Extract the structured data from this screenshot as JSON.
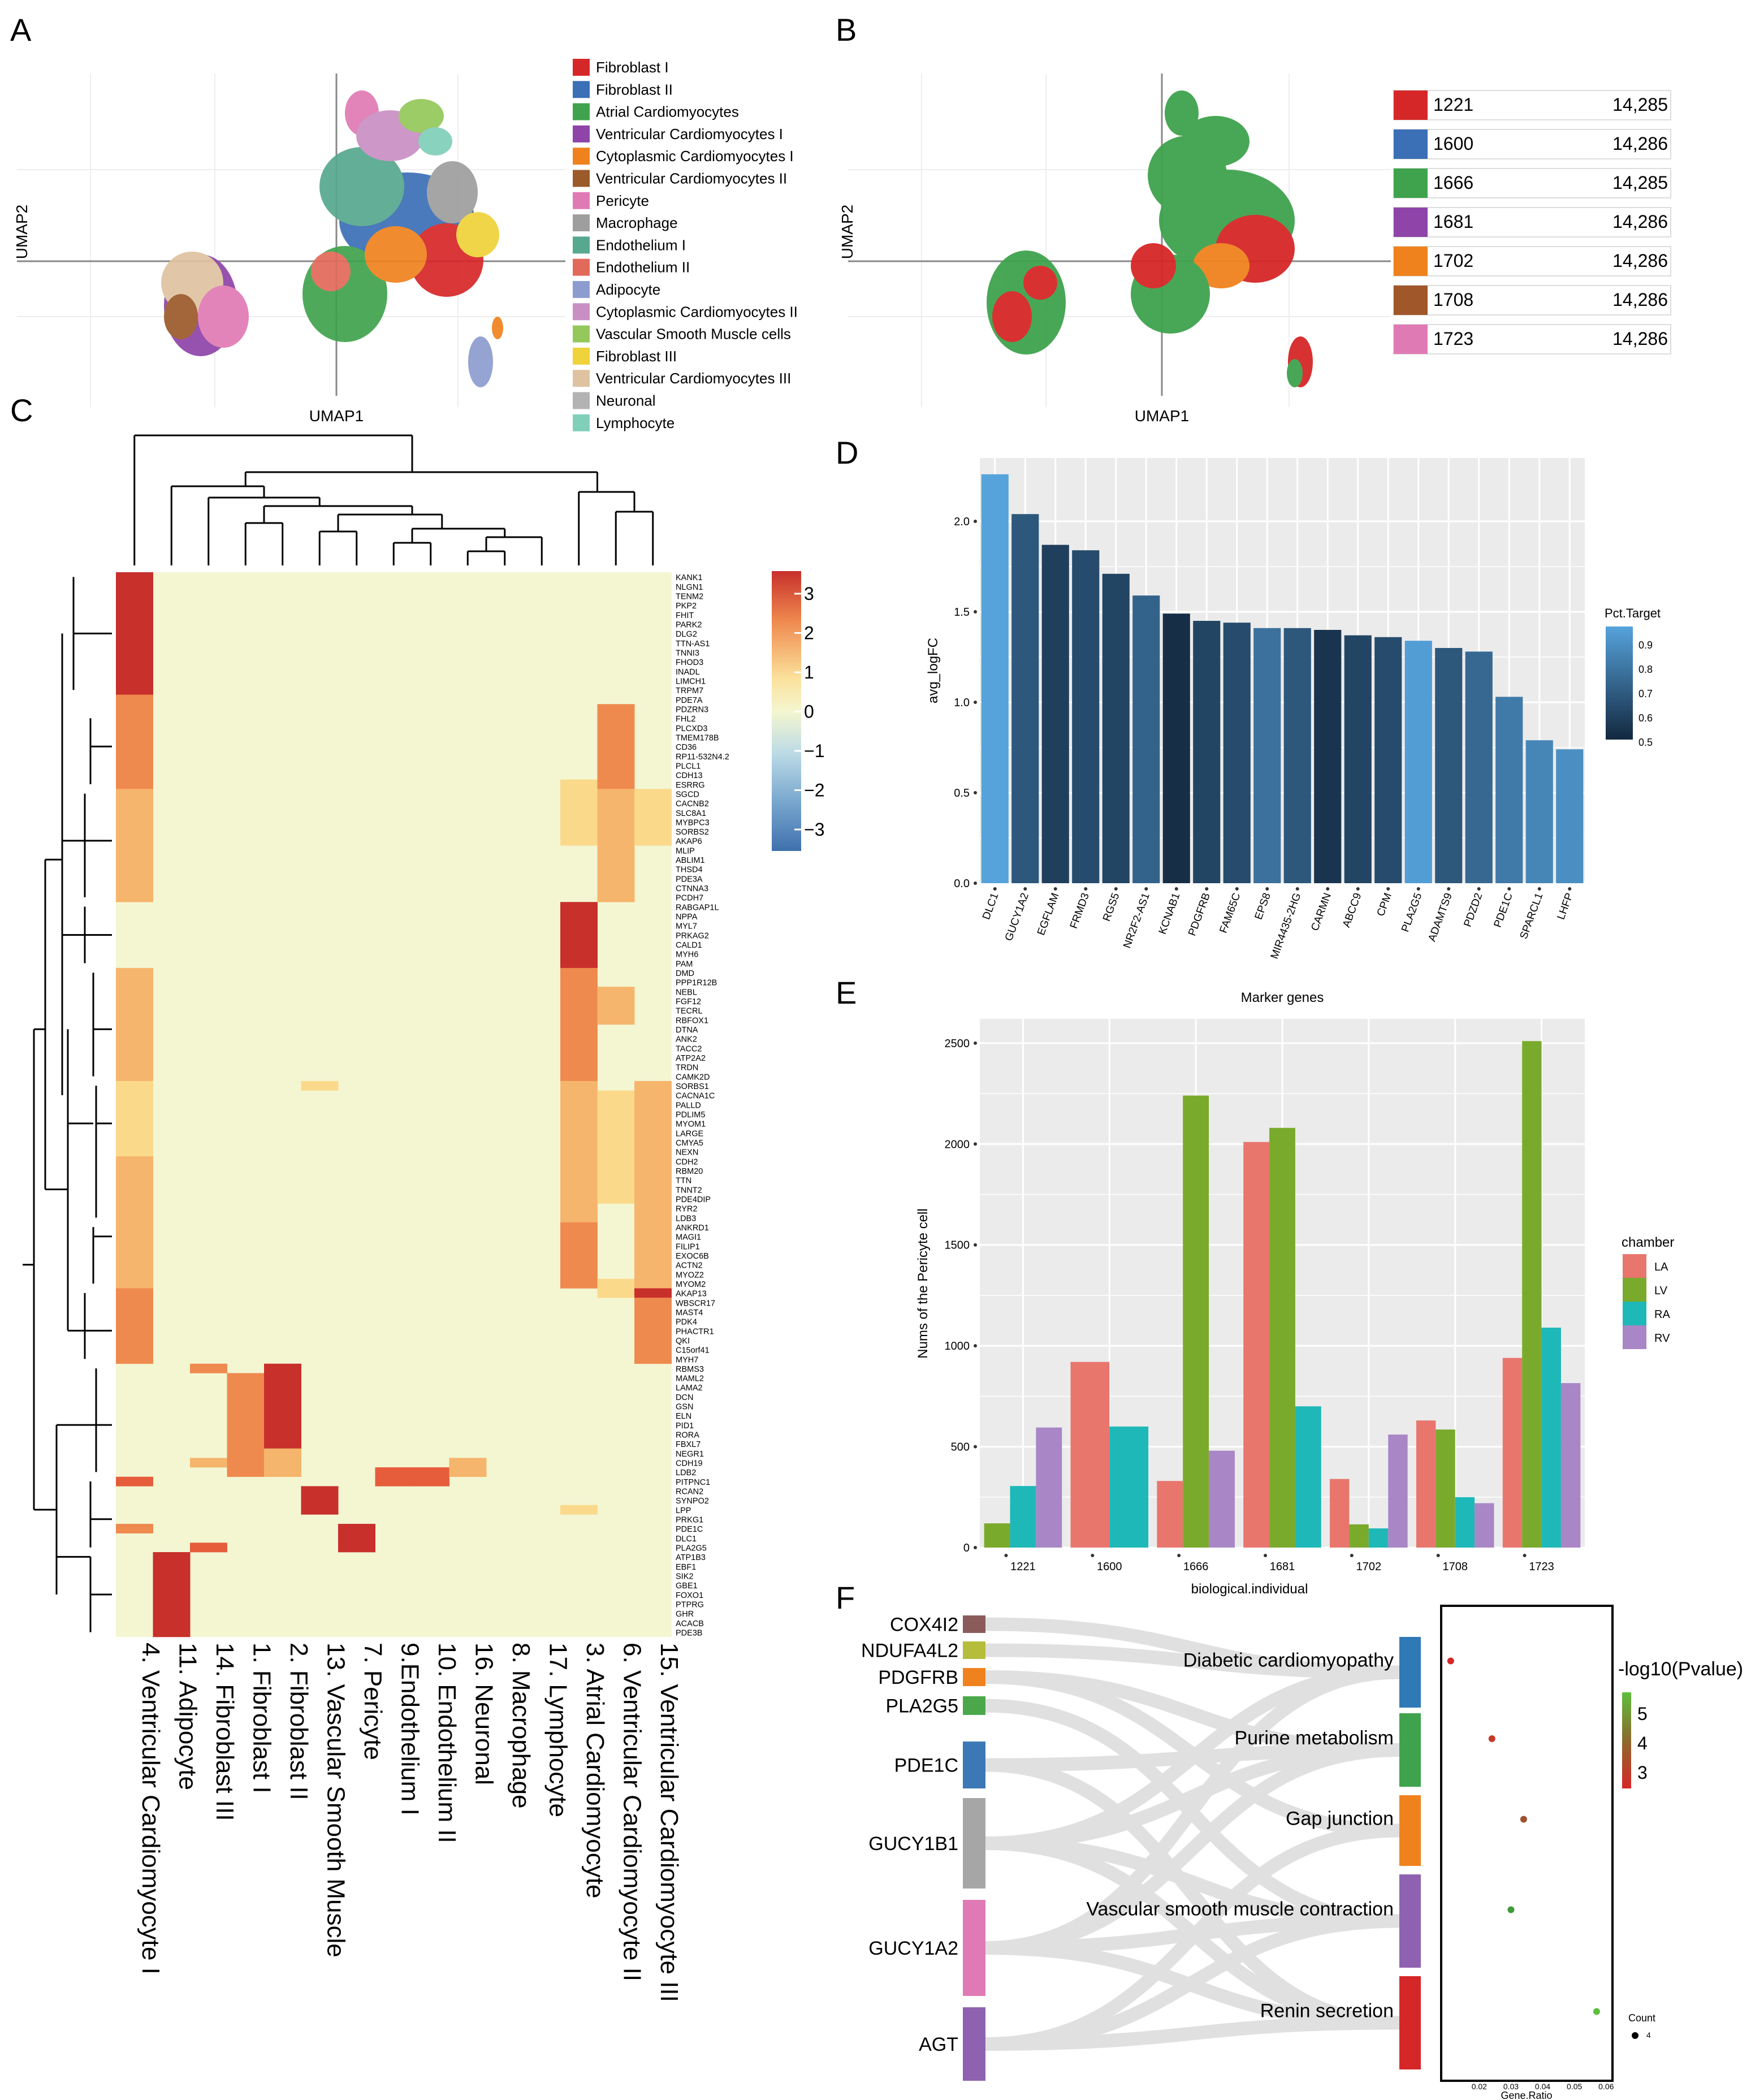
{
  "panels": {
    "a": "A",
    "b": "B",
    "c": "C",
    "d": "D",
    "e": "E",
    "f": "F"
  },
  "umap_a": {
    "xlabel": "UMAP1",
    "ylabel": "UMAP2",
    "legend": [
      {
        "label": "Fibroblast I",
        "color": "#d62728"
      },
      {
        "label": "Fibroblast II",
        "color": "#3b6fb6"
      },
      {
        "label": "Atrial Cardiomyocytes",
        "color": "#3fa34d"
      },
      {
        "label": "Ventricular Cardiomyocytes I",
        "color": "#8e44a8"
      },
      {
        "label": "Cytoplasmic Cardiomyocytes I",
        "color": "#f0821e"
      },
      {
        "label": "Ventricular Cardiomyocytes II",
        "color": "#9b5a2a"
      },
      {
        "label": "Pericyte",
        "color": "#e07ab5"
      },
      {
        "label": "Macrophage",
        "color": "#9e9e9e"
      },
      {
        "label": "Endothelium I",
        "color": "#56a88f"
      },
      {
        "label": "Endothelium II",
        "color": "#e26a5a"
      },
      {
        "label": "Adipocyte",
        "color": "#8d9ccf"
      },
      {
        "label": "Cytoplasmic Cardiomyocytes II",
        "color": "#c98fc4"
      },
      {
        "label": "Vascular Smooth Muscle cells",
        "color": "#94c85a"
      },
      {
        "label": "Fibroblast III",
        "color": "#f0d23a"
      },
      {
        "label": "Ventricular Cardiomyocytes III",
        "color": "#dfc3a0"
      },
      {
        "label": "Neuronal",
        "color": "#b3b3b3"
      },
      {
        "label": "Lymphocyte",
        "color": "#7fcfb9"
      }
    ]
  },
  "umap_b": {
    "xlabel": "UMAP1",
    "ylabel": "UMAP2",
    "legend": [
      {
        "label": "1221",
        "count": "14,285",
        "color": "#d62728"
      },
      {
        "label": "1600",
        "count": "14,286",
        "color": "#3b6fb6"
      },
      {
        "label": "1666",
        "count": "14,285",
        "color": "#3fa34d"
      },
      {
        "label": "1681",
        "count": "14,286",
        "color": "#8e44a8"
      },
      {
        "label": "1702",
        "count": "14,286",
        "color": "#f0821e"
      },
      {
        "label": "1708",
        "count": "14,286",
        "color": "#a0572a"
      },
      {
        "label": "1723",
        "count": "14,286",
        "color": "#e07ab5"
      }
    ]
  },
  "chart_data": [
    {
      "type": "bar",
      "panel": "D",
      "title": "",
      "xlabel": "Marker genes",
      "ylabel": "avg_logFC",
      "ylim": [
        0,
        2.35
      ],
      "yticks": [
        "0.0",
        "0.5",
        "1.0",
        "1.5",
        "2.0"
      ],
      "legend_title": "Pct.Target",
      "legend_ticks": [
        "0.9",
        "0.8",
        "0.7",
        "0.6",
        "0.5"
      ],
      "categories": [
        "DLC1",
        "GUCY1A2",
        "EGFLAM",
        "FRMD3",
        "RGS5",
        "NR2F2-AS1",
        "KCNAB1",
        "PDGFRB",
        "FAM65C",
        "EPS8",
        "MIR4435-2HG",
        "CARMN",
        "ABCC9",
        "CPM",
        "PLA2G5",
        "ADAMTS9",
        "PDZD2",
        "PDE1C",
        "SPARCL1",
        "LHFP"
      ],
      "values": [
        2.26,
        2.04,
        1.87,
        1.84,
        1.71,
        1.59,
        1.49,
        1.45,
        1.44,
        1.41,
        1.41,
        1.4,
        1.37,
        1.36,
        1.34,
        1.3,
        1.28,
        1.03,
        0.79,
        0.74
      ],
      "pct_target": [
        0.92,
        0.66,
        0.58,
        0.62,
        0.6,
        0.7,
        0.52,
        0.6,
        0.62,
        0.75,
        0.66,
        0.54,
        0.6,
        0.62,
        0.9,
        0.66,
        0.72,
        0.78,
        0.82,
        0.85
      ]
    },
    {
      "type": "bar",
      "panel": "E",
      "title": "",
      "xlabel": "biological.individual",
      "ylabel": "Nums of the Pericyte cell",
      "ylim": [
        0,
        2620
      ],
      "yticks": [
        "0",
        "500",
        "1000",
        "1500",
        "2000",
        "2500"
      ],
      "legend_title": "chamber",
      "categories": [
        "1221",
        "1600",
        "1666",
        "1681",
        "1702",
        "1708",
        "1723"
      ],
      "series": [
        {
          "name": "LA",
          "color": "#e8766d",
          "values": [
            null,
            920,
            330,
            2010,
            340,
            630,
            940
          ]
        },
        {
          "name": "LV",
          "color": "#7aaa2c",
          "values": [
            120,
            null,
            2240,
            2080,
            115,
            585,
            2510
          ]
        },
        {
          "name": "RA",
          "color": "#1fb8b8",
          "values": [
            305,
            600,
            null,
            700,
            95,
            250,
            1090
          ]
        },
        {
          "name": "RV",
          "color": "#a986c6",
          "values": [
            595,
            null,
            480,
            null,
            560,
            220,
            815
          ]
        }
      ]
    },
    {
      "type": "scatter",
      "panel": "F",
      "xlabel": "Gene.Ratio",
      "xlim": [
        0.008,
        0.062
      ],
      "xticks": [
        "0.02",
        "0.03",
        "0.04",
        "0.05",
        "0.06"
      ],
      "color_title": "-log10(Pvalue)",
      "color_ticks": [
        "5",
        "4",
        "3"
      ],
      "size_title": "Count",
      "size_tick": "4",
      "points": [
        {
          "term": "Diabetic cardiomyopathy",
          "x": 0.011,
          "neglogp": 2.6
        },
        {
          "term": "Purine metabolism",
          "x": 0.024,
          "neglogp": 3.0
        },
        {
          "term": "Gap junction",
          "x": 0.034,
          "neglogp": 3.7
        },
        {
          "term": "Vascular smooth muscle contraction",
          "x": 0.03,
          "neglogp": 4.5
        },
        {
          "term": "Renin secretion",
          "x": 0.057,
          "neglogp": 5.2
        }
      ]
    }
  ],
  "heatmap": {
    "colorbar_ticks": [
      "3",
      "2",
      "1",
      "0",
      "−1",
      "−2",
      "−3"
    ],
    "clusters": [
      "4. Ventricular Cardiomyocyte I",
      "11. Adipocyte",
      "14. Fibroblast III",
      "1. Fibroblast I",
      "2. Fibroblast II",
      "13. Vascular Smooth Muscle",
      "7. Pericyte",
      "9.Endothelium I",
      "10. Endothelium II",
      "16. Neuronal",
      "8. Macrophage",
      "17. Lymphocyte",
      "3. Atrial Cardiomyocyte",
      "6. Ventricular Cardiomyocyte II",
      "15. Ventricular Cardiomyocyte III"
    ],
    "genes": [
      "KANK1",
      "NLGN1",
      "TENM2",
      "PKP2",
      "FHIT",
      "PARK2",
      "DLG2",
      "TTN-AS1",
      "TNNI3",
      "FHOD3",
      "INADL",
      "LIMCH1",
      "TRPM7",
      "PDE7A",
      "PDZRN3",
      "FHL2",
      "PLCXD3",
      "TMEM178B",
      "CD36",
      "RP11-532N4.2",
      "PLCL1",
      "CDH13",
      "ESRRG",
      "SGCD",
      "CACNB2",
      "SLC8A1",
      "MYBPC3",
      "SORBS2",
      "AKAP6",
      "MLIP",
      "ABLIM1",
      "THSD4",
      "PDE3A",
      "CTNNA3",
      "PCDH7",
      "RABGAP1L",
      "NPPA",
      "MYL7",
      "PRKAG2",
      "CALD1",
      "MYH6",
      "PAM",
      "DMD",
      "PPP1R12B",
      "NEBL",
      "FGF12",
      "TECRL",
      "RBFOX1",
      "DTNA",
      "ANK2",
      "TACC2",
      "ATP2A2",
      "TRDN",
      "CAMK2D",
      "SORBS1",
      "CACNA1C",
      "PALLD",
      "PDLIM5",
      "MYOM1",
      "LARGE",
      "CMYA5",
      "NEXN",
      "CDH2",
      "RBM20",
      "TTN",
      "TNNT2",
      "PDE4DIP",
      "RYR2",
      "LDB3",
      "ANKRD1",
      "MAGI1",
      "FILIP1",
      "EXOC6B",
      "ACTN2",
      "MYOZ2",
      "MYOM2",
      "AKAP13",
      "WBSCR17",
      "MAST4",
      "PDK4",
      "PHACTR1",
      "QKI",
      "C15orf41",
      "MYH7",
      "RBMS3",
      "MAML2",
      "LAMA2",
      "DCN",
      "GSN",
      "ELN",
      "PID1",
      "RORA",
      "FBXL7",
      "NEGR1",
      "CDH19",
      "LDB2",
      "PITPNC1",
      "RCAN2",
      "SYNPO2",
      "LPP",
      "PRKG1",
      "PDE1C",
      "DLC1",
      "PLA2G5",
      "ATP1B3",
      "EBF1",
      "SIK2",
      "GBE1",
      "FOXO1",
      "PTPRG",
      "GHR",
      "ACACB",
      "PDE3B"
    ]
  },
  "sankey": {
    "genes": [
      {
        "label": "COX4I2",
        "color": "#8b5a5a"
      },
      {
        "label": "NDUFA4L2",
        "color": "#b5bd3a"
      },
      {
        "label": "PDGFRB",
        "color": "#f0821e"
      },
      {
        "label": "PLA2G5",
        "color": "#4aa84a"
      },
      {
        "label": "PDE1C",
        "color": "#3b78b5"
      },
      {
        "label": "GUCY1B1",
        "color": "#a6a6a6"
      },
      {
        "label": "GUCY1A2",
        "color": "#e07ab5"
      },
      {
        "label": "AGT",
        "color": "#8e62b0"
      }
    ],
    "pathways": [
      {
        "label": "Diabetic cardiomyopathy",
        "color": "#2f79b7"
      },
      {
        "label": "Purine metabolism",
        "color": "#3fa34d"
      },
      {
        "label": "Gap junction",
        "color": "#f0821e"
      },
      {
        "label": "Vascular smooth muscle contraction",
        "color": "#8e62b0"
      },
      {
        "label": "Renin secretion",
        "color": "#d62728"
      }
    ]
  }
}
